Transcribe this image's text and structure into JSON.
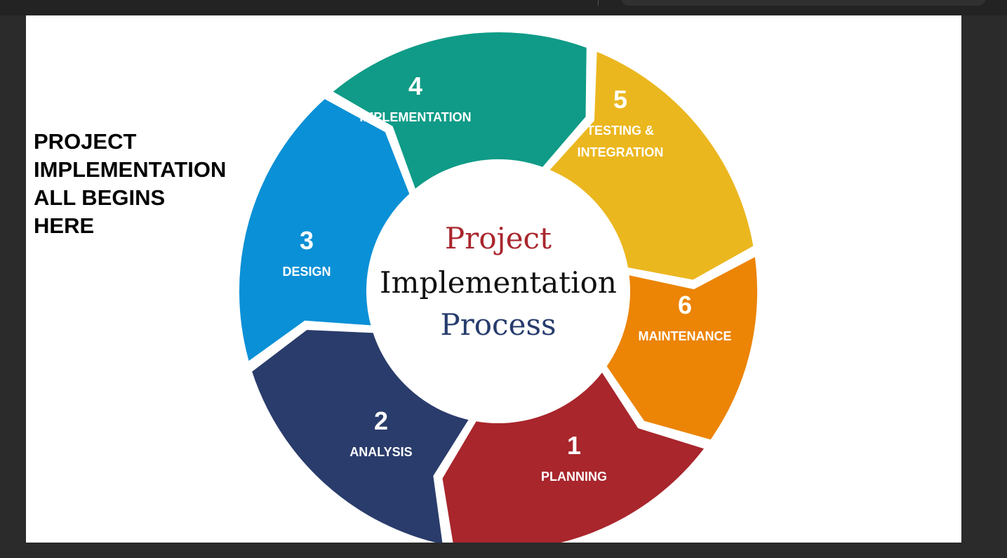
{
  "side_heading": [
    "PROJECT",
    "IMPLEMENTATION",
    "ALL BEGINS",
    "HERE"
  ],
  "center": {
    "line1": "Project",
    "line2": "Implementation",
    "line3": "Process",
    "colors": [
      "#a9262d",
      "#111111",
      "#273c6d"
    ]
  },
  "segments": [
    {
      "number": "1",
      "label": [
        "PLANNING"
      ],
      "color": "#a8262c"
    },
    {
      "number": "2",
      "label": [
        "ANALYSIS"
      ],
      "color": "#2a3c6b"
    },
    {
      "number": "3",
      "label": [
        "DESIGN"
      ],
      "color": "#0a90d6"
    },
    {
      "number": "4",
      "label": [
        "IMPLEMENTATION"
      ],
      "color": "#0f9b87"
    },
    {
      "number": "5",
      "label": [
        "TESTING &",
        "INTEGRATION"
      ],
      "color": "#ebb71f"
    },
    {
      "number": "6",
      "label": [
        "MAINTENANCE"
      ],
      "color": "#ec8405"
    }
  ]
}
